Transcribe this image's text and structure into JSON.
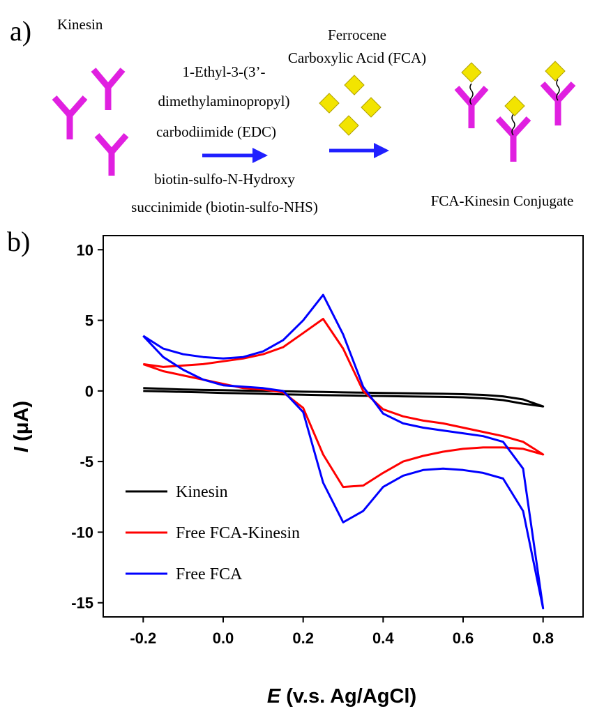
{
  "panel_labels": [
    "a)",
    "b)"
  ],
  "diagram": {
    "reactant_label": "Kinesin",
    "reagent_1": [
      "1-Ethyl-3-(3’-",
      "dimethylaminopropyl)",
      "carbodiimide (EDC)"
    ],
    "reagent_2": [
      "biotin-sulfo-N-Hydroxy",
      "succinimide  (biotin-sulfo-NHS)"
    ],
    "reagent_3": [
      "Ferrocene",
      "Carboxylic Acid (FCA)"
    ],
    "product_label": "FCA-Kinesin Conjugate"
  },
  "chart_data": {
    "type": "line",
    "x_label_symbol": "E",
    "x_label_unit": "(v.s. Ag/AgCl)",
    "y_label_symbol": "I",
    "y_label_unit": "(μA)",
    "x": [
      -0.2,
      -0.15,
      -0.1,
      -0.05,
      0,
      0.05,
      0.1,
      0.15,
      0.2,
      0.25,
      0.3,
      0.35,
      0.4,
      0.45,
      0.5,
      0.55,
      0.6,
      0.65,
      0.7,
      0.75,
      0.8,
      0.75,
      0.7,
      0.65,
      0.6,
      0.55,
      0.5,
      0.45,
      0.4,
      0.35,
      0.3,
      0.25,
      0.2,
      0.15,
      0.1,
      0.05,
      0,
      -0.05,
      -0.1,
      -0.15,
      -0.2
    ],
    "series": [
      {
        "name": "Kinesin",
        "color": "#000000",
        "values": [
          0.2,
          0.15,
          0.1,
          0.07,
          0.05,
          0.02,
          0,
          -0.02,
          -0.05,
          -0.07,
          -0.1,
          -0.12,
          -0.14,
          -0.16,
          -0.18,
          -0.2,
          -0.23,
          -0.28,
          -0.38,
          -0.6,
          -1.1,
          -0.9,
          -0.65,
          -0.52,
          -0.45,
          -0.42,
          -0.4,
          -0.38,
          -0.36,
          -0.34,
          -0.32,
          -0.3,
          -0.27,
          -0.24,
          -0.2,
          -0.17,
          -0.14,
          -0.1,
          -0.07,
          -0.03,
          0
        ]
      },
      {
        "name": "Free FCA-Kinesin",
        "color": "#ff0000",
        "values": [
          1.9,
          1.7,
          1.8,
          1.9,
          2.1,
          2.3,
          2.6,
          3.1,
          4.1,
          5.1,
          3.0,
          0.0,
          -1.3,
          -1.8,
          -2.1,
          -2.3,
          -2.6,
          -2.9,
          -3.2,
          -3.6,
          -4.5,
          -4.1,
          -4.0,
          -4.0,
          -4.1,
          -4.3,
          -4.6,
          -5.0,
          -5.8,
          -6.7,
          -6.8,
          -4.5,
          -1.2,
          -0.1,
          0.1,
          0.2,
          0.5,
          0.8,
          1.1,
          1.4,
          1.9
        ]
      },
      {
        "name": "Free FCA",
        "color": "#0000ff",
        "values": [
          3.9,
          3.0,
          2.6,
          2.4,
          2.3,
          2.4,
          2.8,
          3.6,
          5.0,
          6.8,
          4.0,
          0.3,
          -1.6,
          -2.3,
          -2.6,
          -2.8,
          -3.0,
          -3.2,
          -3.6,
          -5.5,
          -15.4,
          -8.5,
          -6.2,
          -5.8,
          -5.6,
          -5.5,
          -5.6,
          -6.0,
          -6.8,
          -8.5,
          -9.3,
          -6.5,
          -1.5,
          0.0,
          0.2,
          0.3,
          0.4,
          0.8,
          1.5,
          2.4,
          3.9
        ]
      }
    ],
    "xlim": [
      -0.3,
      0.9
    ],
    "xticks": [
      -0.2,
      {
        "value": 0,
        "label": "0.0"
      },
      0.2,
      0.4,
      0.6,
      0.8
    ],
    "ylim": [
      -16,
      11
    ],
    "yticks": [
      10,
      5,
      0,
      -5,
      -10,
      -15
    ],
    "legend": "lower left",
    "grid": false
  }
}
